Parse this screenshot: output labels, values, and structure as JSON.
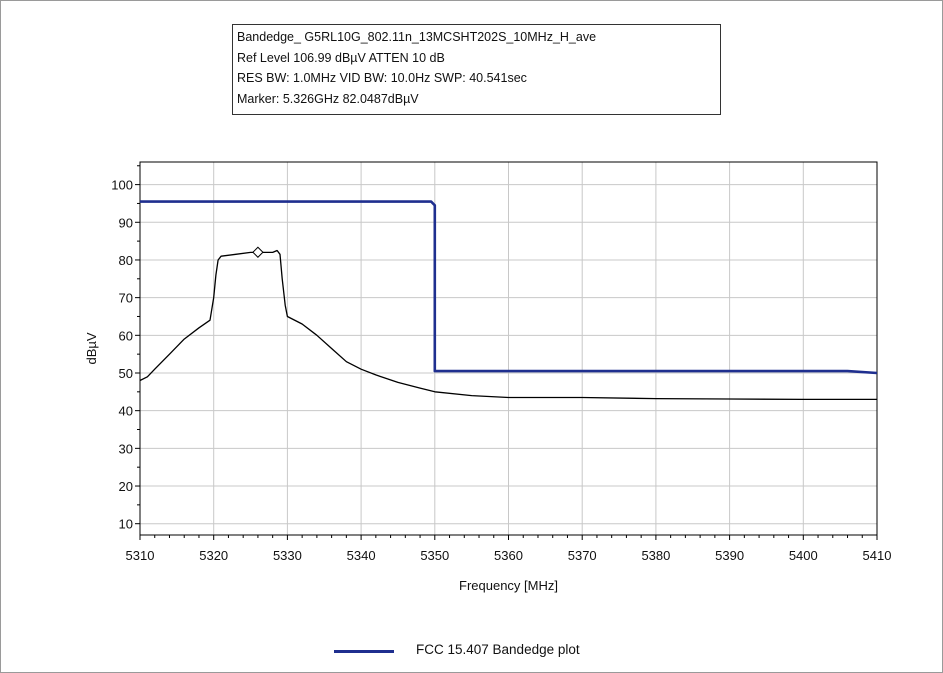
{
  "header": {
    "lines": [
      "Bandedge_ G5RL10G_802.11n_13MCSHT202S_10MHz_H_ave",
      "Ref Level 106.99 dBµV    ATTEN 10 dB",
      "RES BW: 1.0MHz  VID BW: 10.0Hz  SWP: 40.541sec",
      "Marker: 5.326GHz  82.0487dBµV"
    ]
  },
  "legend": {
    "label": "FCC 15.407  Bandedge plot",
    "color": "#1f2f8f"
  },
  "chart_data": {
    "type": "line",
    "xlabel": "Frequency [MHz]",
    "ylabel": "dBµV",
    "xlim": [
      5310,
      5410
    ],
    "ylim": [
      7,
      106
    ],
    "x_ticks": [
      5310,
      5320,
      5330,
      5340,
      5350,
      5360,
      5370,
      5380,
      5390,
      5400,
      5410
    ],
    "y_ticks": [
      10,
      20,
      30,
      40,
      50,
      60,
      70,
      80,
      90,
      100
    ],
    "grid": true,
    "legend_position": "bottom",
    "marker": {
      "x": 5326,
      "y": 82.05
    },
    "series": [
      {
        "name": "FCC 15.407  Bandedge plot",
        "color": "#1f2f8f",
        "x": [
          5310,
          5349.5,
          5350,
          5350,
          5406,
          5410
        ],
        "y": [
          95.5,
          95.5,
          94.5,
          50.5,
          50.5,
          50
        ]
      },
      {
        "color": "#000000",
        "x": [
          5310,
          5311,
          5312,
          5314,
          5316,
          5318,
          5319.5,
          5320,
          5320.3,
          5320.6,
          5321,
          5323,
          5325,
          5326,
          5327,
          5328,
          5328.6,
          5329,
          5329.3,
          5329.7,
          5330,
          5332,
          5334,
          5336,
          5338,
          5340,
          5342,
          5345,
          5348,
          5350,
          5355,
          5360,
          5370,
          5380,
          5390,
          5400,
          5410
        ],
        "y": [
          48,
          49,
          51,
          55,
          59,
          62,
          64,
          70,
          76,
          80,
          81,
          81.5,
          82,
          82,
          82,
          82,
          82.5,
          81.5,
          75,
          68,
          65,
          63,
          60,
          56.5,
          53,
          51,
          49.5,
          47.5,
          46,
          45,
          44,
          43.5,
          43.5,
          43.2,
          43.1,
          43,
          43
        ]
      }
    ]
  }
}
